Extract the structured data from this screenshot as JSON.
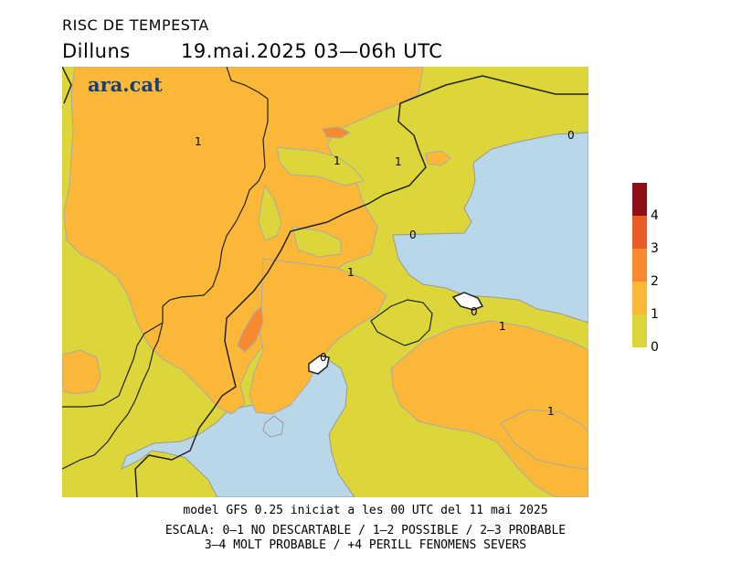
{
  "header": {
    "title": "RISC DE TEMPESTA",
    "day": "Dilluns",
    "datetime": "19.mai.2025 03—06h UTC"
  },
  "brand": {
    "name": "ara.cat"
  },
  "map": {
    "contour_labels": [
      "1",
      "1",
      "1",
      "0",
      "0",
      "1",
      "0",
      "0",
      "1",
      "1"
    ],
    "colors": {
      "level_0_1": "#dcd63a",
      "level_1_2": "#fbb838",
      "level_2_3": "#f78a2e",
      "level_3_4": "#e85d25",
      "level_4_plus": "#8b1117",
      "sea_below_0": "#b8d8ea"
    }
  },
  "legend": {
    "ticks": [
      "4",
      "3",
      "2",
      "1",
      "0"
    ],
    "colors": [
      "#8b1117",
      "#e85d25",
      "#f78a2e",
      "#fbb838",
      "#dcd63a"
    ]
  },
  "footer": {
    "model": "model GFS 0.25 iniciat a les 00 UTC del 11 mai 2025",
    "scale1": "ESCALA: 0—1 NO DESCARTABLE / 1—2 POSSIBLE / 2—3 PROBABLE",
    "scale2": "3—4 MOLT PROBABLE / +4 PERILL FENOMENS SEVERS"
  }
}
